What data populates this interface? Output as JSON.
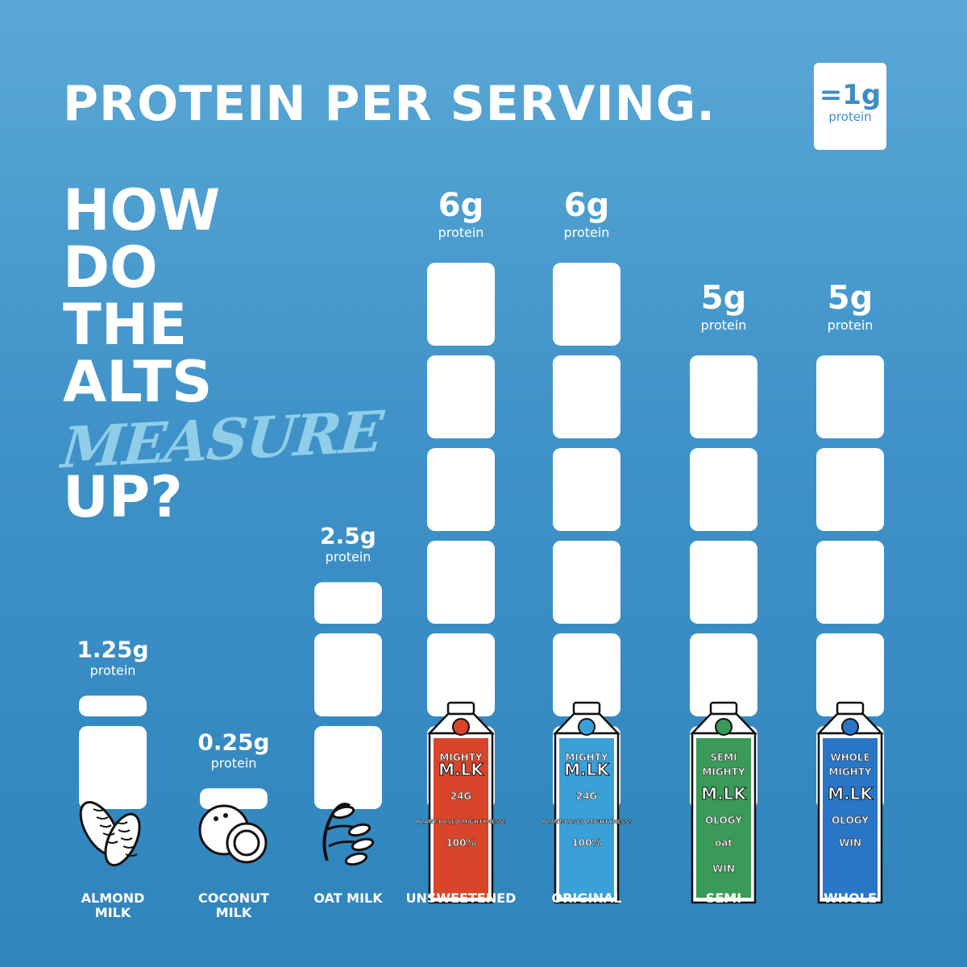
{
  "title": "PROTEIN PER SERVING.",
  "legend": {
    "unit": "=1g",
    "label": "protein"
  },
  "headline": {
    "line1": "HOW",
    "line2": "DO",
    "line3": "THE",
    "line4": "ALTS",
    "line5": "MEASURE",
    "line6": "UP?"
  },
  "chart_data": {
    "type": "bar",
    "unit_label": "protein",
    "categories": [
      "ALMOND MILK",
      "COCONUT MILK",
      "OAT MILK",
      "UNSWEETENED",
      "ORIGINAL",
      "SEMI",
      "WHOLE"
    ],
    "values": [
      1.25,
      0.25,
      2.5,
      6,
      6,
      5,
      5
    ],
    "value_labels": [
      "1.25g",
      "0.25g",
      "2.5g",
      "6g",
      "6g",
      "5g",
      "5g"
    ],
    "icons": [
      "almond-icon",
      "coconut-icon",
      "oat-icon",
      "mighty-milk-unsweetened-carton",
      "mighty-milk-original-carton",
      "milkology-semi-carton",
      "milkology-whole-carton"
    ],
    "carton_colors": [
      "",
      "",
      "",
      "#d8452a",
      "#3aa0d8",
      "#3a9a58",
      "#2a76c6"
    ],
    "carton_text": [
      [],
      [],
      [],
      [
        "MIGHTY",
        "M.LK",
        "24G",
        "PLANT-BASED MIGHTYNESS!",
        "100%"
      ],
      [
        "MIGHTY",
        "M.LK",
        "24G",
        "PLANT-BASED MIGHTYNESS!",
        "100%"
      ],
      [
        "SEMI",
        "MIGHTY",
        "M.LK",
        "OLOGY",
        "oat",
        "WIN"
      ],
      [
        "WHOLE",
        "MIGHTY",
        "M.LK",
        "OLOGY",
        "WIN"
      ]
    ]
  }
}
